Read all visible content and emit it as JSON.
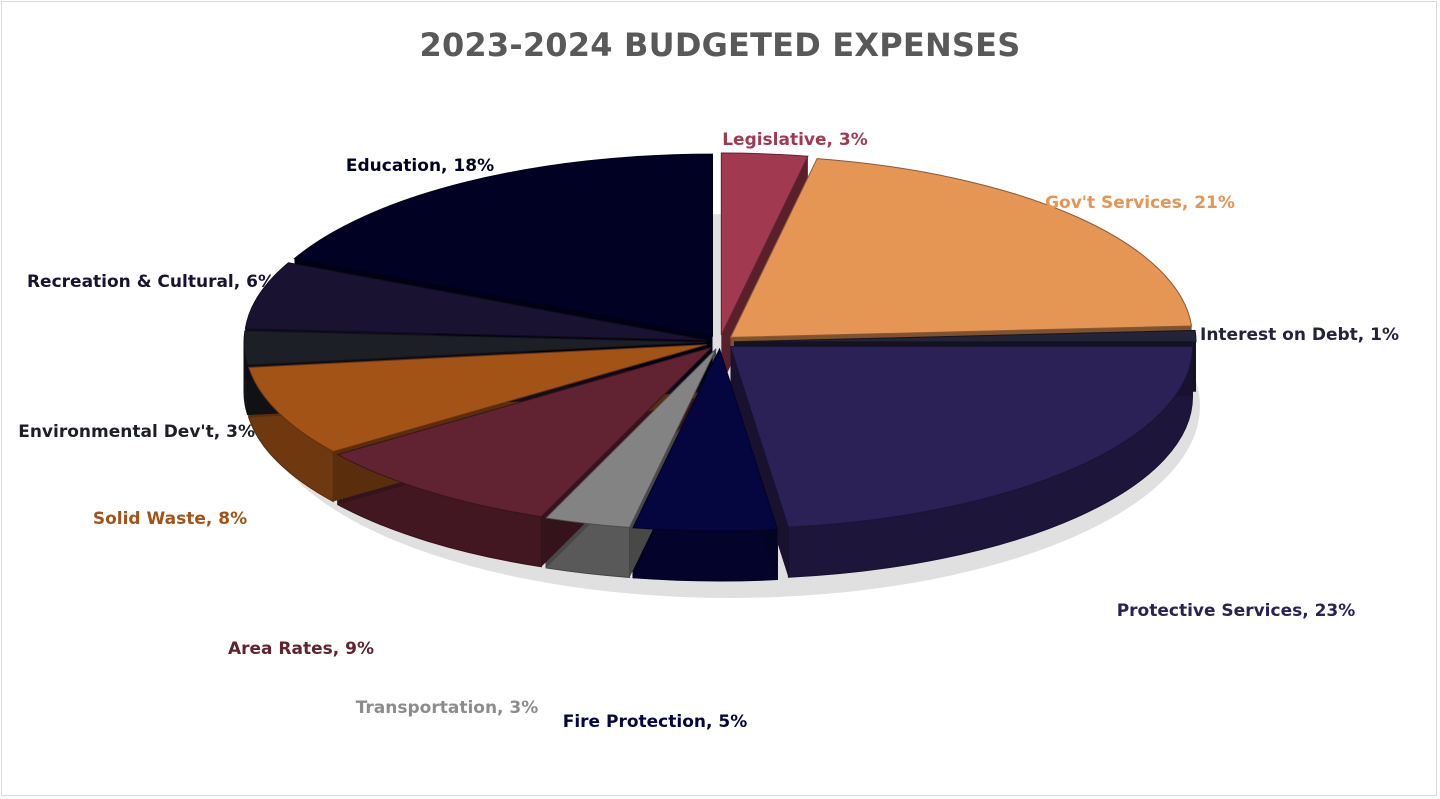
{
  "chart_data": {
    "type": "pie",
    "title": "2023-2024 BUDGETED EXPENSES",
    "slices": [
      {
        "label": "Legislative",
        "value": 3,
        "display": "Legislative, 3%",
        "color": "#a13a50",
        "label_color": "#a13a50"
      },
      {
        "label": "Gov't Services",
        "value": 21,
        "display": "Gov't Services, 21%",
        "color": "#e59554",
        "label_color": "#e59554"
      },
      {
        "label": "Interest on Debt",
        "value": 1,
        "display": "Interest on Debt, 1%",
        "color": "#23233a",
        "label_color": "#23233a"
      },
      {
        "label": "Protective Services",
        "value": 23,
        "display": "Protective Services, 23%",
        "color": "#2b2156",
        "label_color": "#2b2156"
      },
      {
        "label": "Fire Protection",
        "value": 5,
        "display": "Fire Protection, 5%",
        "color": "#05053f",
        "label_color": "#05053f"
      },
      {
        "label": "Transportation",
        "value": 3,
        "display": "Transportation, 3%",
        "color": "#838383",
        "label_color": "#8c8c8c"
      },
      {
        "label": "Area Rates",
        "value": 9,
        "display": "Area Rates, 9%",
        "color": "#612231",
        "label_color": "#612231"
      },
      {
        "label": "Solid Waste",
        "value": 8,
        "display": "Solid Waste, 8%",
        "color": "#a35315",
        "label_color": "#a35315"
      },
      {
        "label": "Environmental Dev't",
        "value": 3,
        "display": "Environmental Dev't, 3%",
        "color": "#1c1f26",
        "label_color": "#1c1f26"
      },
      {
        "label": "Recreation & Cultural",
        "value": 6,
        "display": "Recreation & Cultural, 6%",
        "color": "#1a1231",
        "label_color": "#1a1231"
      },
      {
        "label": "Education",
        "value": 18,
        "display": "Education, 18%",
        "color": "#010124",
        "label_color": "#010124"
      }
    ],
    "legend": "none",
    "style": "3d-exploded"
  }
}
